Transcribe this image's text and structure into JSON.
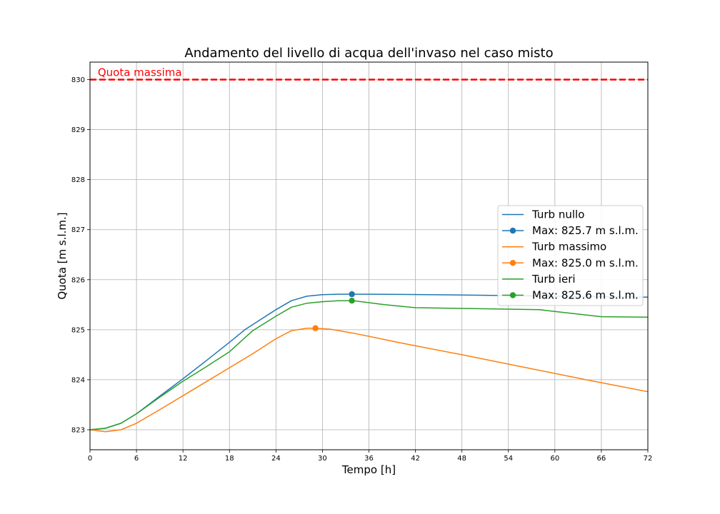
{
  "chart_data": {
    "type": "line",
    "title": "Andamento del livello di acqua dell'invaso nel caso misto",
    "xlabel": "Tempo [h]",
    "ylabel": "Quota [m s.l.m.]",
    "xlim": [
      0,
      72
    ],
    "ylim": [
      822.6,
      830.35
    ],
    "xticks": [
      0,
      6,
      12,
      18,
      24,
      30,
      36,
      42,
      48,
      54,
      60,
      66,
      72
    ],
    "yticks": [
      823,
      824,
      825,
      826,
      827,
      828,
      829,
      830
    ],
    "grid": true,
    "legend_position": "center-right",
    "reference_line": {
      "y": 830,
      "label": "Quota massima",
      "color": "#ff0000",
      "style": "dashed"
    },
    "series": [
      {
        "name": "Turb nullo",
        "color": "#1f77b4",
        "x": [
          0,
          2,
          4,
          6,
          9,
          12,
          15,
          18,
          20,
          22,
          24,
          26,
          28,
          30,
          32,
          34,
          40,
          50,
          60,
          66,
          72
        ],
        "y": [
          823.0,
          823.03,
          823.13,
          823.32,
          823.67,
          824.02,
          824.38,
          824.75,
          825.0,
          825.2,
          825.4,
          825.58,
          825.67,
          825.7,
          825.71,
          825.71,
          825.705,
          825.69,
          825.67,
          825.66,
          825.65
        ],
        "max": {
          "x": 33.8,
          "y": 825.71,
          "label": "Max: 825.7 m s.l.m."
        }
      },
      {
        "name": "Turb massimo",
        "color": "#ff7f0e",
        "x": [
          0,
          2,
          4,
          6,
          9,
          12,
          15,
          18,
          21,
          24,
          26,
          28,
          29,
          31,
          34,
          40,
          48,
          56,
          64,
          72
        ],
        "y": [
          823.0,
          822.96,
          823.0,
          823.13,
          823.4,
          823.68,
          823.96,
          824.24,
          824.52,
          824.82,
          824.98,
          825.03,
          825.03,
          825.01,
          824.93,
          824.74,
          824.5,
          824.25,
          824.0,
          823.76
        ],
        "max": {
          "x": 29.1,
          "y": 825.03,
          "label": "Max: 825.0 m s.l.m."
        }
      },
      {
        "name": "Turb ieri",
        "color": "#2ca02c",
        "x": [
          0,
          2,
          4,
          6,
          9,
          12,
          15,
          18,
          21,
          24,
          26,
          28,
          30,
          32,
          34,
          38,
          42,
          50,
          58,
          62,
          66,
          72
        ],
        "y": [
          823.0,
          823.03,
          823.13,
          823.32,
          823.65,
          823.97,
          824.26,
          824.56,
          824.98,
          825.27,
          825.45,
          825.53,
          825.56,
          825.58,
          825.58,
          825.5,
          825.44,
          825.42,
          825.4,
          825.33,
          825.26,
          825.25
        ],
        "max": {
          "x": 33.8,
          "y": 825.58,
          "label": "Max: 825.6 m s.l.m."
        }
      }
    ]
  }
}
